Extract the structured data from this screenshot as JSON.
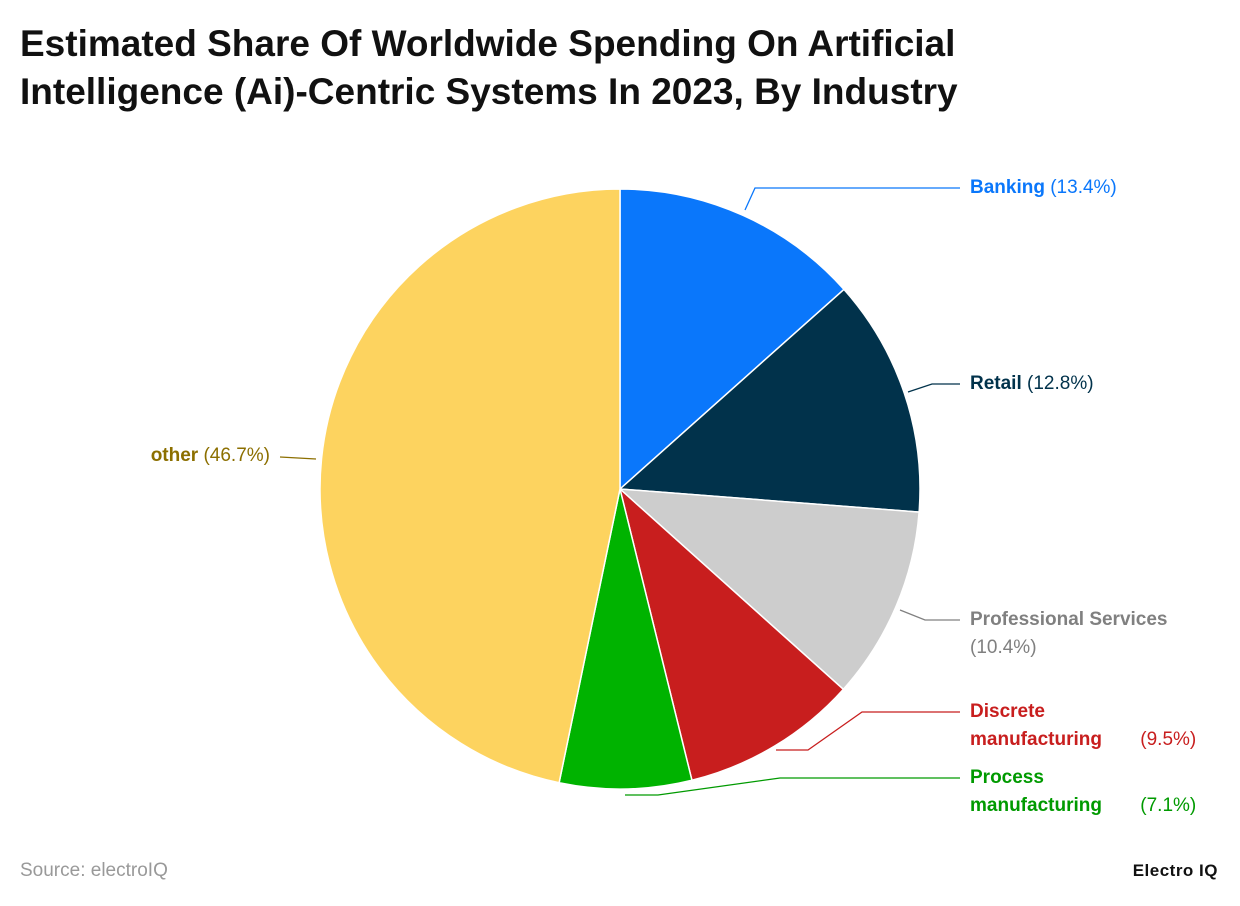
{
  "chart_data": {
    "type": "pie",
    "title": "Estimated Share Of Worldwide Spending On Artificial Intelligence (Ai)-Centric Systems In 2023, By Industry",
    "categories": [
      "Banking",
      "Retail",
      "Professional Services",
      "Discrete manufacturing",
      "Process manufacturing",
      "other"
    ],
    "values": [
      13.4,
      12.8,
      10.4,
      9.5,
      7.1,
      46.7
    ],
    "value_labels": [
      "(13.4%)",
      "(12.8%)",
      "(10.4%)",
      "(9.5%)",
      "(7.1%)",
      "(46.7%)"
    ],
    "colors": [
      "#0a77fb",
      "#01324b",
      "#cdcdcd",
      "#c81e1e",
      "#00b300",
      "#fdd35f"
    ],
    "label_colors": [
      "#0a77fb",
      "#01324b",
      "#808080",
      "#c81e1e",
      "#009a00",
      "#8c6f00"
    ],
    "source": "Source: electroIQ",
    "brand": "Electro IQ"
  }
}
